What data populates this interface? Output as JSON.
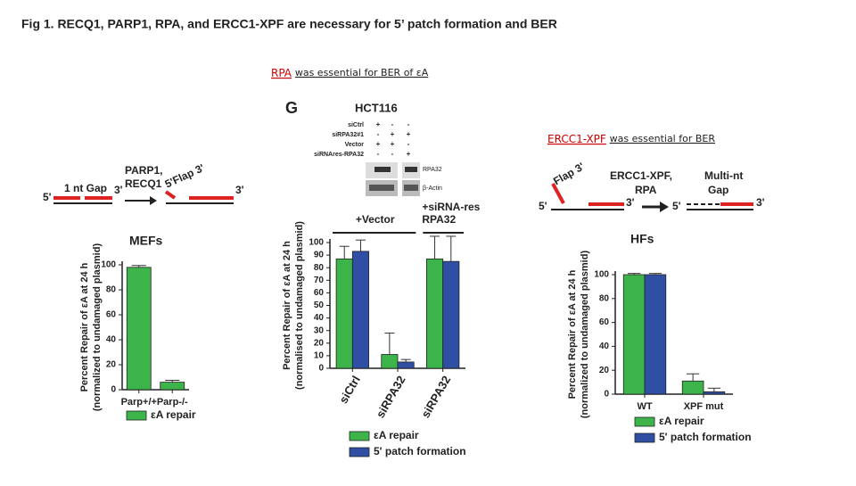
{
  "title": "Fig 1. RECQ1, PARP1, RPA, and ERCC1-XPF are necessary for 5’ patch formation and BER",
  "captions": [
    {
      "highlight": "RPA",
      "text": "was essential for BER of εA"
    },
    {
      "highlight": "ERCC1-XPF",
      "text": "was essential for BER"
    }
  ],
  "left_diagram": {
    "proteins": [
      "PARP1,",
      "RECQ1"
    ],
    "gap": "1 nt Gap",
    "end5": "5'",
    "end3": "3'",
    "flap": "5'Flap 3'",
    "end3b": "3'"
  },
  "right_diagram": {
    "end5": "5'",
    "flap": "Flap 3'",
    "proteins": [
      "ERCC1-XPF,",
      "RPA"
    ],
    "gap": [
      "Multi-nt",
      "Gap"
    ],
    "end3": "3'",
    "end5b": "5'",
    "end3b": "3'"
  },
  "blot": {
    "panel": "G",
    "cell_line": "HCT116",
    "conditions": [
      {
        "label": "siCtrl",
        "marks": [
          "+",
          "-",
          "-"
        ]
      },
      {
        "label": "siRPA32#1",
        "marks": [
          "-",
          "+",
          "+"
        ]
      },
      {
        "label": "Vector",
        "marks": [
          "+",
          "+",
          "-"
        ]
      },
      {
        "label": "siRNAres-RPA32",
        "marks": [
          "-",
          "-",
          "+"
        ]
      }
    ],
    "bands": [
      "RPA32",
      "β-Actin"
    ]
  },
  "chart_data": [
    {
      "type": "bar",
      "title": "MEFs",
      "y_label": [
        "Percent Repair of εA at 24 h",
        "(normalized to undamaged plasmid)"
      ],
      "categories": [
        "Parp+/+",
        "Parp-/-"
      ],
      "series": [
        {
          "name": "εA repair",
          "color": "#3cb44a",
          "values": [
            98,
            6
          ],
          "errors": [
            1.5,
            1.5
          ]
        }
      ],
      "ylim": [
        0,
        100
      ],
      "yticks": [
        0,
        20,
        40,
        60,
        80,
        100
      ]
    },
    {
      "type": "bar",
      "y_label": [
        "Percent Repair of εA at 24 h",
        "(normalised to undamaged plasmid)"
      ],
      "groups": [
        "+Vector",
        "+siRNA-res RPA32"
      ],
      "categories": [
        "siCtrl",
        "siRPA32",
        "siRPA32"
      ],
      "series": [
        {
          "name": "εA repair",
          "color": "#3cb44a",
          "values": [
            87,
            11,
            87
          ],
          "errors": [
            10,
            17,
            18
          ]
        },
        {
          "name": "5' patch formation",
          "color": "#2e4fa3",
          "values": [
            93,
            5,
            85
          ],
          "errors": [
            9,
            2,
            20
          ]
        }
      ],
      "ylim": [
        0,
        100
      ],
      "yticks": [
        0,
        10,
        20,
        30,
        40,
        50,
        60,
        70,
        80,
        90,
        100
      ]
    },
    {
      "type": "bar",
      "title": "HFs",
      "y_label": [
        "Percent Repair of εA at 24 h",
        "(normalized to undamaged plasmid)"
      ],
      "categories": [
        "WT",
        "XPF mut"
      ],
      "series": [
        {
          "name": "εA repair",
          "color": "#3cb44a",
          "values": [
            100,
            11
          ],
          "errors": [
            1,
            6
          ]
        },
        {
          "name": "5' patch formation",
          "color": "#2e4fa3",
          "values": [
            100,
            2
          ],
          "errors": [
            1,
            3
          ]
        }
      ],
      "ylim": [
        0,
        100
      ],
      "yticks": [
        0,
        20,
        40,
        60,
        80,
        100
      ]
    }
  ]
}
